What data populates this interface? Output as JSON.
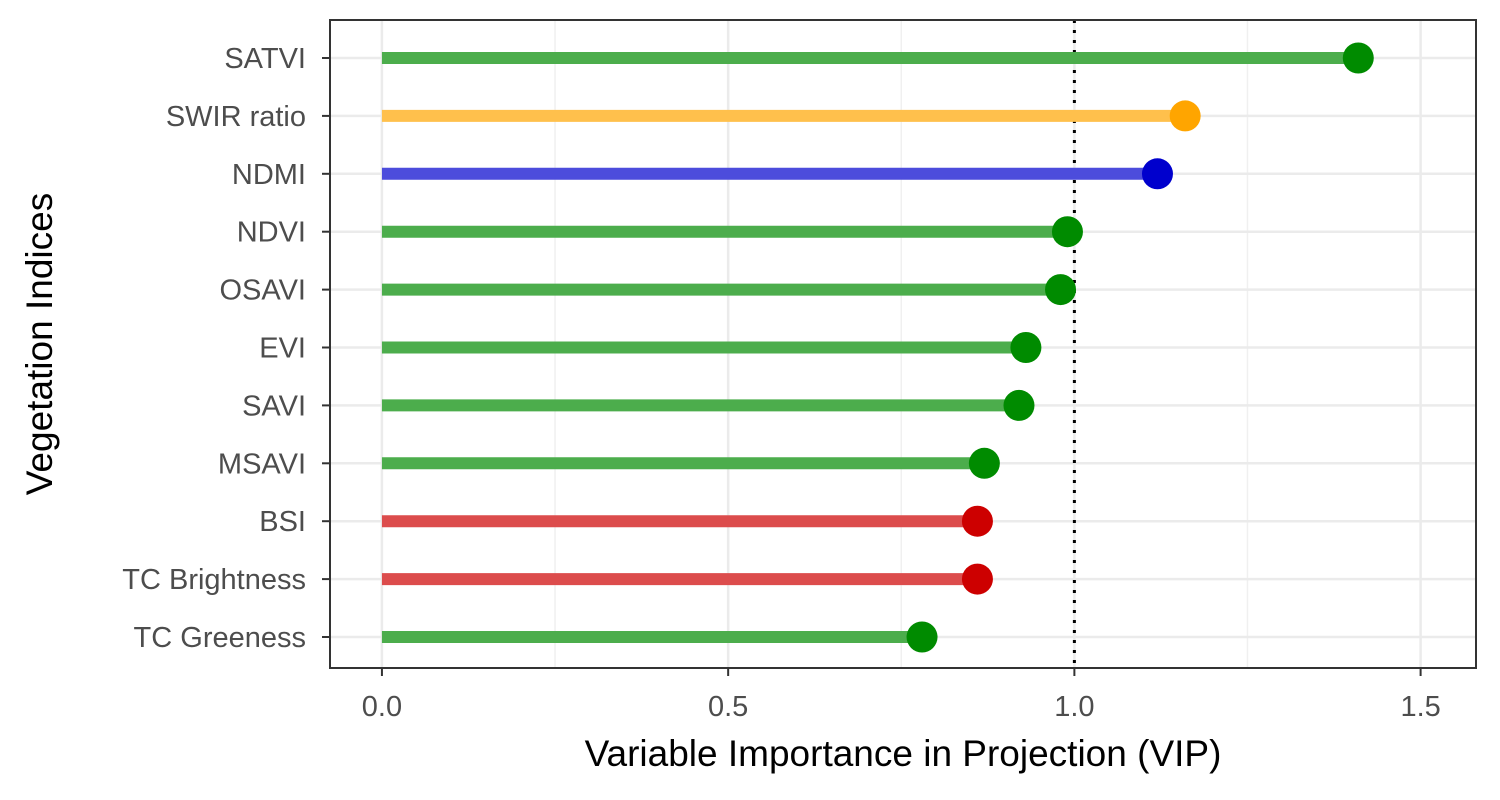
{
  "chart_data": {
    "type": "lollipop",
    "title": "",
    "xlabel": "Variable Importance in Projection (VIP)",
    "ylabel": "Vegetation Indices",
    "xlim": [
      -0.075,
      1.58
    ],
    "x_ticks": [
      0.0,
      0.5,
      1.0,
      1.5
    ],
    "x_tick_labels": [
      "0.0",
      "0.5",
      "1.0",
      "1.5"
    ],
    "reference_line": {
      "x": 1.0,
      "style": "dotted",
      "color": "#000000"
    },
    "grid": true,
    "legend": "none",
    "categories": [
      "SATVI",
      "SWIR ratio",
      "NDMI",
      "NDVI",
      "OSAVI",
      "EVI",
      "SAVI",
      "MSAVI",
      "BSI",
      "TC Brightness",
      "TC Greeness"
    ],
    "values": [
      1.41,
      1.16,
      1.12,
      0.99,
      0.98,
      0.93,
      0.92,
      0.87,
      0.86,
      0.86,
      0.78
    ],
    "point_colors": [
      "#008b00",
      "#ffa500",
      "#0000cd",
      "#008b00",
      "#008b00",
      "#008b00",
      "#008b00",
      "#008b00",
      "#cd0000",
      "#cd0000",
      "#008b00"
    ],
    "segment_colors": [
      "#4cad4c",
      "#ffc04c",
      "#4c4cdc",
      "#4cad4c",
      "#4cad4c",
      "#4cad4c",
      "#4cad4c",
      "#4cad4c",
      "#dc4c4c",
      "#dc4c4c",
      "#4cad4c"
    ]
  }
}
